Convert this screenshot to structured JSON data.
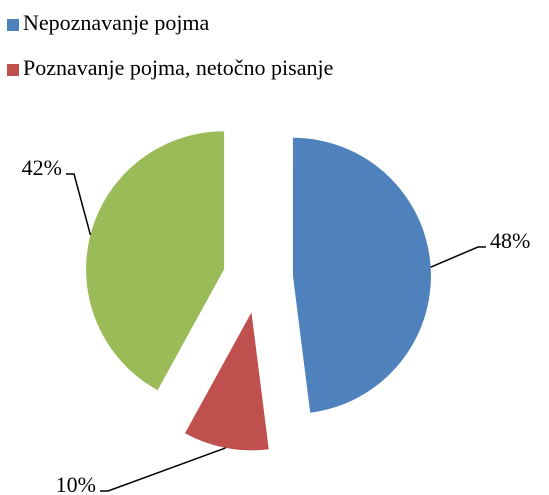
{
  "chart_data": {
    "type": "pie",
    "categories": [
      "Nepoznavanje pojma",
      "Poznavanje pojma, netočno pisanje",
      null
    ],
    "values": [
      48,
      10,
      42
    ],
    "value_labels": [
      "48%",
      "10%",
      "42%"
    ],
    "colors": [
      "#4f81bd",
      "#c0504d",
      "#9bbb59"
    ],
    "legend": "top"
  }
}
